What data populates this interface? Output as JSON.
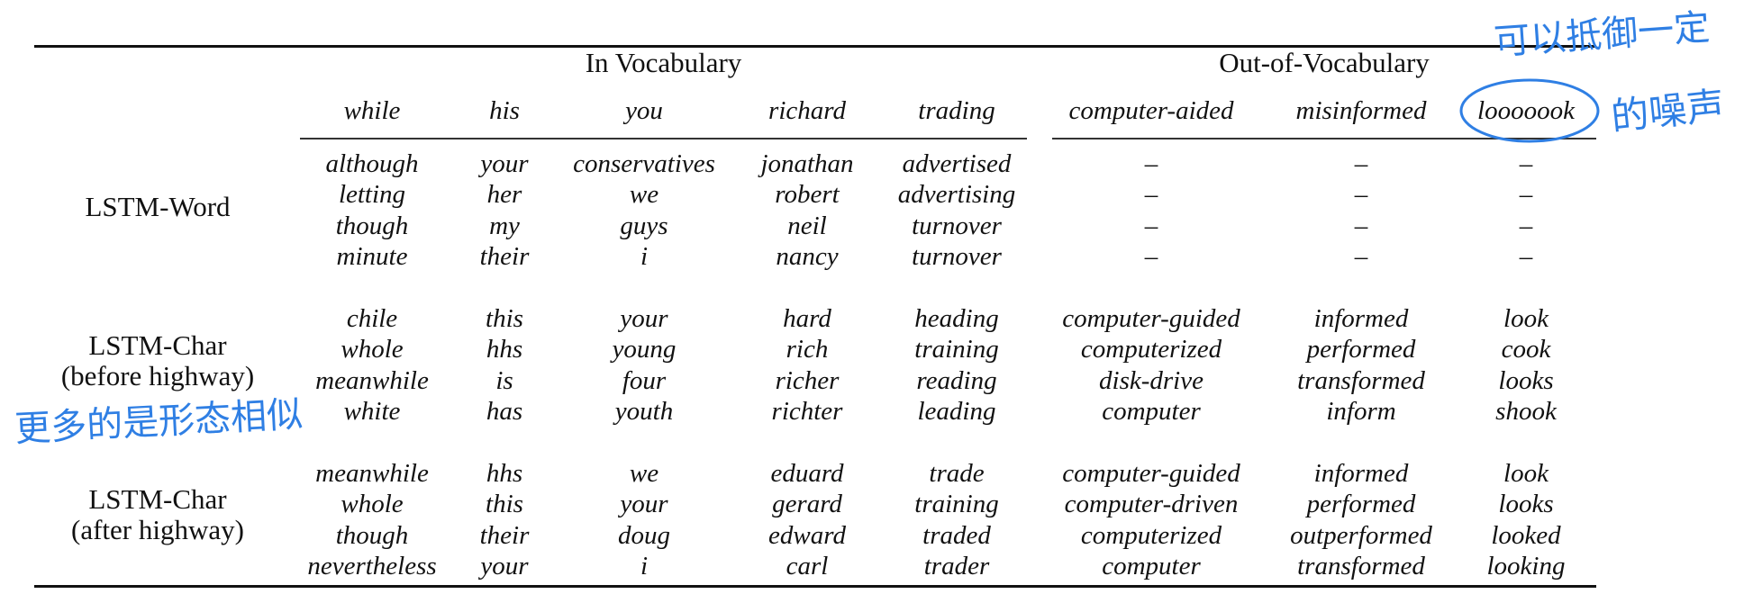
{
  "table": {
    "group_headers": {
      "in_vocab": "In Vocabulary",
      "oov": "Out-of-Vocabulary"
    },
    "query_words": [
      "while",
      "his",
      "you",
      "richard",
      "trading",
      "computer-aided",
      "misinformed",
      "looooook"
    ],
    "rows": [
      {
        "label_lines": [
          "LSTM-Word"
        ],
        "columns": [
          [
            "although",
            "letting",
            "though",
            "minute"
          ],
          [
            "your",
            "her",
            "my",
            "their"
          ],
          [
            "conservatives",
            "we",
            "guys",
            "i"
          ],
          [
            "jonathan",
            "robert",
            "neil",
            "nancy"
          ],
          [
            "advertised",
            "advertising",
            "turnover",
            "turnover"
          ],
          [
            "–",
            "–",
            "–",
            "–"
          ],
          [
            "–",
            "–",
            "–",
            "–"
          ],
          [
            "–",
            "–",
            "–",
            "–"
          ]
        ]
      },
      {
        "label_lines": [
          "LSTM-Char",
          "(before highway)"
        ],
        "columns": [
          [
            "chile",
            "whole",
            "meanwhile",
            "white"
          ],
          [
            "this",
            "hhs",
            "is",
            "has"
          ],
          [
            "your",
            "young",
            "four",
            "youth"
          ],
          [
            "hard",
            "rich",
            "richer",
            "richter"
          ],
          [
            "heading",
            "training",
            "reading",
            "leading"
          ],
          [
            "computer-guided",
            "computerized",
            "disk-drive",
            "computer"
          ],
          [
            "informed",
            "performed",
            "transformed",
            "inform"
          ],
          [
            "look",
            "cook",
            "looks",
            "shook"
          ]
        ]
      },
      {
        "label_lines": [
          "LSTM-Char",
          "(after highway)"
        ],
        "columns": [
          [
            "meanwhile",
            "whole",
            "though",
            "nevertheless"
          ],
          [
            "hhs",
            "this",
            "their",
            "your"
          ],
          [
            "we",
            "your",
            "doug",
            "i"
          ],
          [
            "eduard",
            "gerard",
            "edward",
            "carl"
          ],
          [
            "trade",
            "training",
            "traded",
            "trader"
          ],
          [
            "computer-guided",
            "computer-driven",
            "computerized",
            "computer"
          ],
          [
            "informed",
            "performed",
            "outperformed",
            "transformed"
          ],
          [
            "look",
            "looks",
            "looked",
            "looking"
          ]
        ]
      }
    ]
  },
  "annotations": {
    "top_right": "可以抵御一定",
    "side_right": "的噪声",
    "left": "更多的是形态相似",
    "color": "#2f7fe4"
  }
}
